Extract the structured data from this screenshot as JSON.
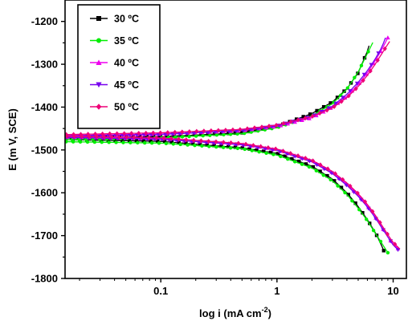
{
  "chart_data": {
    "type": "line",
    "xlabel": "log i (mA cm",
    "xlabel_sup": "-2",
    "xlabel_close": ")",
    "ylabel": "E (m V, SCE)",
    "xscale": "log",
    "xlim": [
      0.015,
      13
    ],
    "ylim": [
      -1800,
      -1150
    ],
    "x_ticks": [
      0.1,
      1,
      10
    ],
    "x_tick_labels": [
      "0.1",
      "1",
      "10"
    ],
    "y_ticks": [
      -1200,
      -1300,
      -1400,
      -1500,
      -1600,
      -1700,
      -1800
    ],
    "y_tick_labels": [
      "-1200",
      "-1300",
      "-1400",
      "-1500",
      "-1600",
      "-1700",
      "-1800"
    ],
    "grid": false,
    "legend_position": "top-left",
    "series": [
      {
        "name": "30 ºC",
        "color": "#000000",
        "marker": "square",
        "ecorr": -1474,
        "anodic": [
          [
            0.01,
            -1473
          ],
          [
            0.1,
            -1469
          ],
          [
            0.5,
            -1460
          ],
          [
            1,
            -1445
          ],
          [
            2,
            -1415
          ],
          [
            3,
            -1388
          ],
          [
            4,
            -1357
          ],
          [
            5,
            -1320
          ],
          [
            6,
            -1270
          ],
          [
            6.5,
            -1238
          ]
        ],
        "cathodic": [
          [
            0.01,
            -1475
          ],
          [
            0.1,
            -1480
          ],
          [
            0.5,
            -1495
          ],
          [
            1,
            -1508
          ],
          [
            2,
            -1538
          ],
          [
            3,
            -1568
          ],
          [
            4,
            -1600
          ],
          [
            5,
            -1632
          ],
          [
            6,
            -1663
          ],
          [
            7,
            -1692
          ],
          [
            7.8,
            -1718
          ],
          [
            8.3,
            -1735
          ]
        ]
      },
      {
        "name": "35 ºC",
        "color": "#00ee00",
        "marker": "circle",
        "ecorr": -1478,
        "anodic": [
          [
            0.01,
            -1477
          ],
          [
            0.1,
            -1472
          ],
          [
            0.5,
            -1462
          ],
          [
            1,
            -1448
          ],
          [
            2,
            -1420
          ],
          [
            3,
            -1392
          ],
          [
            4,
            -1358
          ],
          [
            5,
            -1318
          ],
          [
            6,
            -1275
          ],
          [
            7,
            -1238
          ]
        ],
        "cathodic": [
          [
            0.01,
            -1480
          ],
          [
            0.1,
            -1484
          ],
          [
            0.5,
            -1497
          ],
          [
            1,
            -1512
          ],
          [
            2,
            -1542
          ],
          [
            3,
            -1572
          ],
          [
            4,
            -1604
          ],
          [
            5,
            -1636
          ],
          [
            6,
            -1665
          ],
          [
            7,
            -1694
          ],
          [
            8,
            -1718
          ],
          [
            9,
            -1740
          ]
        ]
      },
      {
        "name": "40 ºC",
        "color": "#ee00ee",
        "marker": "triangle-up",
        "ecorr": -1468,
        "anodic": [
          [
            0.01,
            -1467
          ],
          [
            0.1,
            -1463
          ],
          [
            0.5,
            -1455
          ],
          [
            1,
            -1445
          ],
          [
            2,
            -1425
          ],
          [
            3,
            -1400
          ],
          [
            4,
            -1375
          ],
          [
            5,
            -1347
          ],
          [
            6,
            -1320
          ],
          [
            7,
            -1292
          ],
          [
            8,
            -1265
          ],
          [
            9,
            -1238
          ]
        ],
        "cathodic": [
          [
            0.01,
            -1469
          ],
          [
            0.1,
            -1474
          ],
          [
            0.5,
            -1487
          ],
          [
            1,
            -1500
          ],
          [
            2,
            -1526
          ],
          [
            3,
            -1553
          ],
          [
            4,
            -1580
          ],
          [
            5,
            -1605
          ],
          [
            6,
            -1630
          ],
          [
            7,
            -1656
          ],
          [
            8,
            -1680
          ],
          [
            9,
            -1703
          ],
          [
            10,
            -1720
          ],
          [
            11,
            -1730
          ]
        ]
      },
      {
        "name": "45 ºC",
        "color": "#7700ee",
        "marker": "triangle-down",
        "ecorr": -1469,
        "anodic": [
          [
            0.01,
            -1468
          ],
          [
            0.1,
            -1464
          ],
          [
            0.5,
            -1455
          ],
          [
            1,
            -1444
          ],
          [
            2,
            -1422
          ],
          [
            3,
            -1398
          ],
          [
            4,
            -1370
          ],
          [
            5,
            -1342
          ],
          [
            6,
            -1315
          ],
          [
            7,
            -1288
          ],
          [
            8,
            -1260
          ],
          [
            8.6,
            -1238
          ]
        ],
        "cathodic": [
          [
            0.01,
            -1470
          ],
          [
            0.1,
            -1475
          ],
          [
            0.5,
            -1488
          ],
          [
            1,
            -1501
          ],
          [
            2,
            -1528
          ],
          [
            3,
            -1555
          ],
          [
            4,
            -1583
          ],
          [
            5,
            -1608
          ],
          [
            6,
            -1633
          ],
          [
            7,
            -1658
          ],
          [
            8,
            -1682
          ],
          [
            9,
            -1703
          ],
          [
            10,
            -1722
          ],
          [
            11,
            -1733
          ]
        ]
      },
      {
        "name": "50 ºC",
        "color": "#ee0077",
        "marker": "diamond",
        "ecorr": -1466,
        "anodic": [
          [
            0.01,
            -1465
          ],
          [
            0.1,
            -1460
          ],
          [
            0.5,
            -1452
          ],
          [
            1,
            -1442
          ],
          [
            2,
            -1422
          ],
          [
            3,
            -1402
          ],
          [
            4,
            -1378
          ],
          [
            5,
            -1352
          ],
          [
            6,
            -1326
          ],
          [
            7,
            -1300
          ],
          [
            8,
            -1275
          ],
          [
            9,
            -1253
          ],
          [
            9.8,
            -1238
          ]
        ],
        "cathodic": [
          [
            0.01,
            -1467
          ],
          [
            0.1,
            -1472
          ],
          [
            0.5,
            -1485
          ],
          [
            1,
            -1498
          ],
          [
            2,
            -1524
          ],
          [
            3,
            -1550
          ],
          [
            4,
            -1577
          ],
          [
            5,
            -1602
          ],
          [
            6,
            -1627
          ],
          [
            7,
            -1652
          ],
          [
            8,
            -1676
          ],
          [
            9,
            -1698
          ],
          [
            10,
            -1716
          ],
          [
            11.5,
            -1732
          ],
          [
            12,
            -1735
          ]
        ]
      }
    ]
  }
}
